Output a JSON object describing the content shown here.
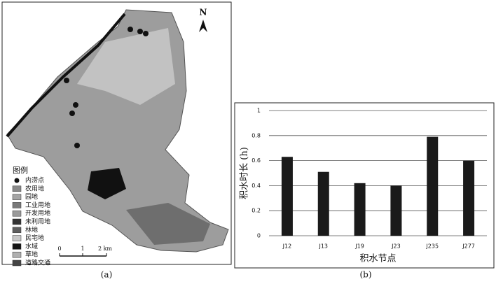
{
  "map": {
    "north": "N",
    "legend": {
      "title": "图例",
      "items": [
        {
          "label": "内涝点",
          "color": "#111111",
          "shape": "circle"
        },
        {
          "label": "农用地",
          "color": "#8a8a8a",
          "shape": "square"
        },
        {
          "label": "园地",
          "color": "#a5a5a5",
          "shape": "square"
        },
        {
          "label": "工业用地",
          "color": "#7a7a7a",
          "shape": "square"
        },
        {
          "label": "开发用地",
          "color": "#9a9a9a",
          "shape": "square"
        },
        {
          "label": "未利用地",
          "color": "#333333",
          "shape": "square"
        },
        {
          "label": "林地",
          "color": "#5e5e5e",
          "shape": "square"
        },
        {
          "label": "民宅地",
          "color": "#c8c8c8",
          "shape": "square"
        },
        {
          "label": "水域",
          "color": "#151515",
          "shape": "square"
        },
        {
          "label": "草地",
          "color": "#b0b0b0",
          "shape": "square"
        },
        {
          "label": "道路交通",
          "color": "#444444",
          "shape": "square"
        }
      ]
    },
    "scale": [
      "0",
      "1",
      "2 km"
    ]
  },
  "chart_data": {
    "type": "bar",
    "categories": [
      "J12",
      "J13",
      "J19",
      "J23",
      "J235",
      "J277"
    ],
    "values": [
      0.63,
      0.51,
      0.42,
      0.4,
      0.79,
      0.6
    ],
    "color": "#1a1a1a",
    "ylim": [
      0,
      1
    ],
    "yticks": [
      0,
      0.2,
      0.4,
      0.6,
      0.8,
      1
    ],
    "grid": true,
    "y_label": "积水时长 (h)",
    "x_label": "积水节点"
  },
  "captions": [
    "(a)",
    "(b)"
  ]
}
